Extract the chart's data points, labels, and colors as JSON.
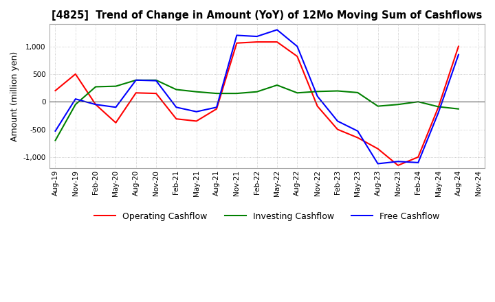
{
  "title": "[4825]  Trend of Change in Amount (YoY) of 12Mo Moving Sum of Cashflows",
  "ylabel": "Amount (million yen)",
  "ylim": [
    -1200,
    1400
  ],
  "yticks": [
    -1000,
    -500,
    0,
    500,
    1000
  ],
  "background_color": "#ffffff",
  "grid_color": "#bbbbbb",
  "line_colors": {
    "operating": "#ff0000",
    "investing": "#008000",
    "free": "#0000ff"
  },
  "legend_labels": [
    "Operating Cashflow",
    "Investing Cashflow",
    "Free Cashflow"
  ],
  "x_labels": [
    "Aug-19",
    "Nov-19",
    "Feb-20",
    "May-20",
    "Aug-20",
    "Nov-20",
    "Feb-21",
    "May-21",
    "Aug-21",
    "Nov-21",
    "Feb-22",
    "May-22",
    "Aug-22",
    "Nov-22",
    "Feb-23",
    "May-23",
    "Aug-23",
    "Nov-23",
    "Feb-24",
    "May-24",
    "Aug-24",
    "Nov-24"
  ],
  "operating": [
    200,
    500,
    -50,
    -380,
    160,
    150,
    -310,
    -350,
    -130,
    1060,
    1080,
    1080,
    820,
    -80,
    -500,
    -650,
    -850,
    -1150,
    -1000,
    -100,
    1000,
    null
  ],
  "investing": [
    -700,
    -50,
    270,
    280,
    390,
    390,
    220,
    180,
    150,
    150,
    180,
    300,
    160,
    185,
    195,
    165,
    -80,
    -50,
    0,
    -90,
    -130,
    null
  ],
  "free": [
    -530,
    50,
    -50,
    -100,
    390,
    380,
    -100,
    -180,
    -100,
    1200,
    1180,
    1300,
    1000,
    100,
    -350,
    -530,
    -1120,
    -1080,
    -1100,
    -200,
    850,
    null
  ]
}
